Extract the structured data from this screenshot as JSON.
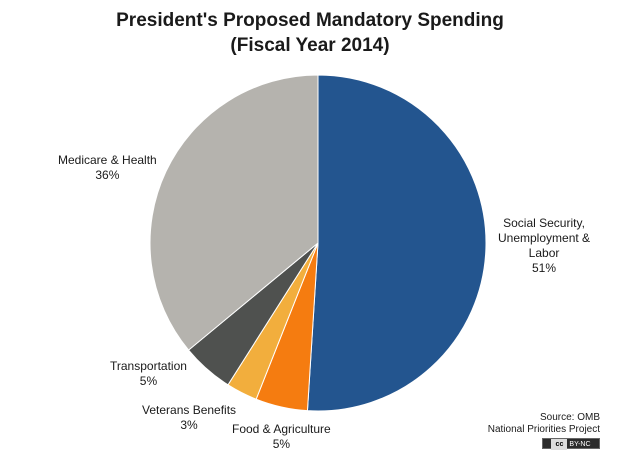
{
  "chart_data": {
    "type": "pie",
    "title_line1": "President's Proposed Mandatory Spending",
    "title_line2": "(Fiscal Year 2014)",
    "slices": [
      {
        "label_lines": [
          "Social Security,",
          "Unemployment  &",
          "Labor"
        ],
        "pct_text": "51%",
        "value": 51,
        "color": "#23558f"
      },
      {
        "label_lines": [
          "Food & Agriculture"
        ],
        "pct_text": "5%",
        "value": 5,
        "color": "#f57c10"
      },
      {
        "label_lines": [
          "Veterans Benefits"
        ],
        "pct_text": "3%",
        "value": 3,
        "color": "#f2ae3d"
      },
      {
        "label_lines": [
          "Transportation"
        ],
        "pct_text": "5%",
        "value": 5,
        "color": "#4f514f"
      },
      {
        "label_lines": [
          "Medicare  & Health"
        ],
        "pct_text": "36%",
        "value": 36,
        "color": "#b5b3ae"
      }
    ]
  },
  "source": {
    "line1": "Source: OMB",
    "line2": "National Priorities Project"
  },
  "license": {
    "cc": "cc",
    "text": "BY-NC"
  }
}
